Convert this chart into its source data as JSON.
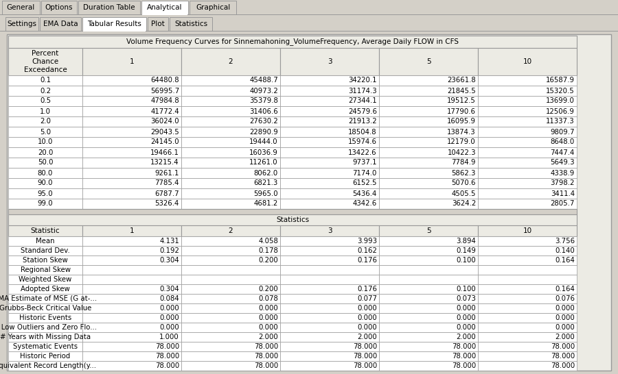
{
  "tab_bar1": [
    "General",
    "Options",
    "Duration Table",
    "Analytical",
    "Graphical"
  ],
  "tab_bar1_active": "Analytical",
  "tab_bar2": [
    "Settings",
    "EMA Data",
    "Tabular Results",
    "Plot",
    "Statistics"
  ],
  "tab_bar2_active": "Tabular Results",
  "main_title": "Volume Frequency Curves for Sinnemahoning_VolumeFrequency, Average Daily FLOW in CFS",
  "col_headers": [
    "Percent\nChance\nExceedance",
    "1",
    "2",
    "3",
    "5",
    "10"
  ],
  "freq_data": [
    [
      "0.1",
      "64480.8",
      "45488.7",
      "34220.1",
      "23661.8",
      "16587.9"
    ],
    [
      "0.2",
      "56995.7",
      "40973.2",
      "31174.3",
      "21845.5",
      "15320.5"
    ],
    [
      "0.5",
      "47984.8",
      "35379.8",
      "27344.1",
      "19512.5",
      "13699.0"
    ],
    [
      "1.0",
      "41772.4",
      "31406.6",
      "24579.6",
      "17790.6",
      "12506.9"
    ],
    [
      "2.0",
      "36024.0",
      "27630.2",
      "21913.2",
      "16095.9",
      "11337.3"
    ],
    [
      "5.0",
      "29043.5",
      "22890.9",
      "18504.8",
      "13874.3",
      "9809.7"
    ],
    [
      "10.0",
      "24145.0",
      "19444.0",
      "15974.6",
      "12179.0",
      "8648.0"
    ],
    [
      "20.0",
      "19466.1",
      "16036.9",
      "13422.6",
      "10422.3",
      "7447.4"
    ],
    [
      "50.0",
      "13215.4",
      "11261.0",
      "9737.1",
      "7784.9",
      "5649.3"
    ],
    [
      "80.0",
      "9261.1",
      "8062.0",
      "7174.0",
      "5862.3",
      "4338.9"
    ],
    [
      "90.0",
      "7785.4",
      "6821.3",
      "6152.5",
      "5070.6",
      "3798.2"
    ],
    [
      "95.0",
      "6787.7",
      "5965.0",
      "5436.4",
      "4505.5",
      "3411.4"
    ],
    [
      "99.0",
      "5326.4",
      "4681.2",
      "4342.6",
      "3624.2",
      "2805.7"
    ]
  ],
  "stats_title": "Statistics",
  "stats_col_headers": [
    "Statistic",
    "1",
    "2",
    "3",
    "5",
    "10"
  ],
  "stats_data": [
    [
      "Mean",
      "4.131",
      "4.058",
      "3.993",
      "3.894",
      "3.756"
    ],
    [
      "Standard Dev.",
      "0.192",
      "0.178",
      "0.162",
      "0.149",
      "0.140"
    ],
    [
      "Station Skew",
      "0.304",
      "0.200",
      "0.176",
      "0.100",
      "0.164"
    ],
    [
      "Regional Skew",
      "",
      "",
      "",
      "",
      ""
    ],
    [
      "Weighted Skew",
      "",
      "",
      "",
      "",
      ""
    ],
    [
      "Adopted Skew",
      "0.304",
      "0.200",
      "0.176",
      "0.100",
      "0.164"
    ],
    [
      "EMA Estimate of MSE (G at-...",
      "0.084",
      "0.078",
      "0.077",
      "0.073",
      "0.076"
    ],
    [
      "Grubbs-Beck Critical Value",
      "0.000",
      "0.000",
      "0.000",
      "0.000",
      "0.000"
    ],
    [
      "Historic Events",
      "0.000",
      "0.000",
      "0.000",
      "0.000",
      "0.000"
    ],
    [
      "# Low Outliers and Zero Flo...",
      "0.000",
      "0.000",
      "0.000",
      "0.000",
      "0.000"
    ],
    [
      "# Years with Missing Data",
      "1.000",
      "2.000",
      "2.000",
      "2.000",
      "2.000"
    ],
    [
      "Systematic Events",
      "78.000",
      "78.000",
      "78.000",
      "78.000",
      "78.000"
    ],
    [
      "Historic Period",
      "78.000",
      "78.000",
      "78.000",
      "78.000",
      "78.000"
    ],
    [
      "Equivalent Record Length(y...",
      "78.000",
      "78.000",
      "78.000",
      "78.000",
      "78.000"
    ]
  ],
  "bg_color": "#d4d0c8",
  "panel_bg": "#ecebe4",
  "table_bg": "#ffffff",
  "border_color": "#999999",
  "tab_active_bg": "#ffffff",
  "tab_inactive_bg": "#d4d0c8",
  "tab_border": "#999999",
  "separator_color": "#c0c0c0",
  "cell_white": "#ffffff",
  "cell_gray": "#ebebeb"
}
